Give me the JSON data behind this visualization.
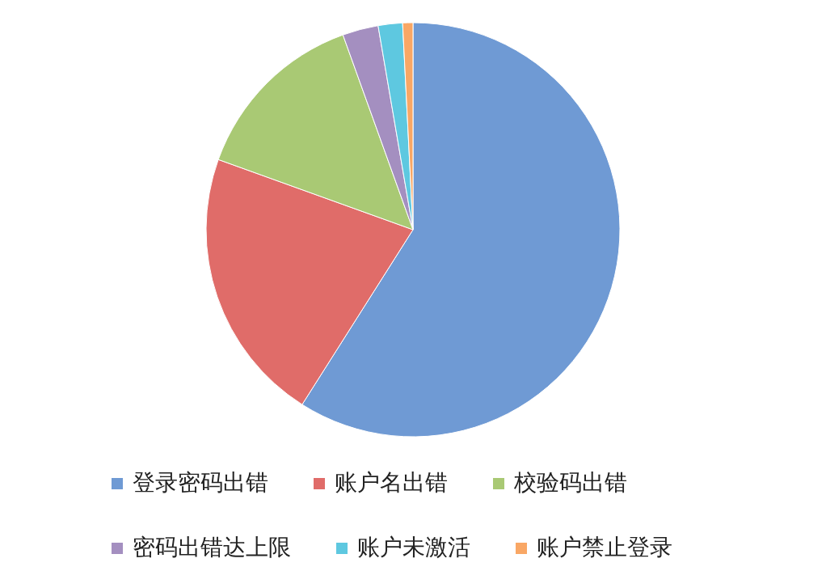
{
  "chart_data": {
    "type": "pie",
    "categories": [
      "登录密码出错",
      "账户名出错",
      "校验码出错",
      "密码出错达上限",
      "账户未激活",
      "账户禁止登录"
    ],
    "values": [
      59,
      21.5,
      14,
      2.8,
      1.9,
      0.8
    ],
    "colors": [
      "#6f9ad4",
      "#e06c69",
      "#a9c974",
      "#a48fc0",
      "#5ec8e0",
      "#f9a765"
    ],
    "legend": "bottom"
  }
}
